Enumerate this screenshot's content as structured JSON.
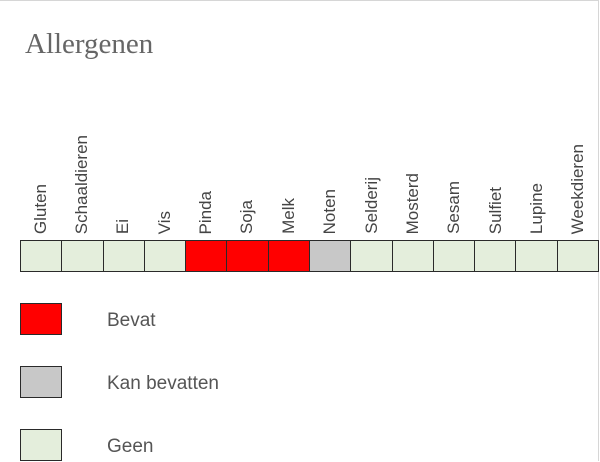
{
  "title": "Allergenen",
  "colors": {
    "bevat": "#ff0000",
    "kan_bevatten": "#c8c8c8",
    "geen": "#e4eedc"
  },
  "allergens": [
    {
      "label": "Gluten",
      "status": "geen"
    },
    {
      "label": "Schaaldieren",
      "status": "geen"
    },
    {
      "label": "Ei",
      "status": "geen"
    },
    {
      "label": "Vis",
      "status": "geen"
    },
    {
      "label": "Pinda",
      "status": "bevat"
    },
    {
      "label": "Soja",
      "status": "bevat"
    },
    {
      "label": "Melk",
      "status": "bevat"
    },
    {
      "label": "Noten",
      "status": "kan_bevatten"
    },
    {
      "label": "Selderij",
      "status": "geen"
    },
    {
      "label": "Mosterd",
      "status": "geen"
    },
    {
      "label": "Sesam",
      "status": "geen"
    },
    {
      "label": "Sulfiet",
      "status": "geen"
    },
    {
      "label": "Lupine",
      "status": "geen"
    },
    {
      "label": "Weekdieren",
      "status": "geen"
    }
  ],
  "legend": [
    {
      "status": "bevat",
      "label": "Bevat"
    },
    {
      "status": "kan_bevatten",
      "label": "Kan bevatten"
    },
    {
      "status": "geen",
      "label": "Geen"
    }
  ]
}
